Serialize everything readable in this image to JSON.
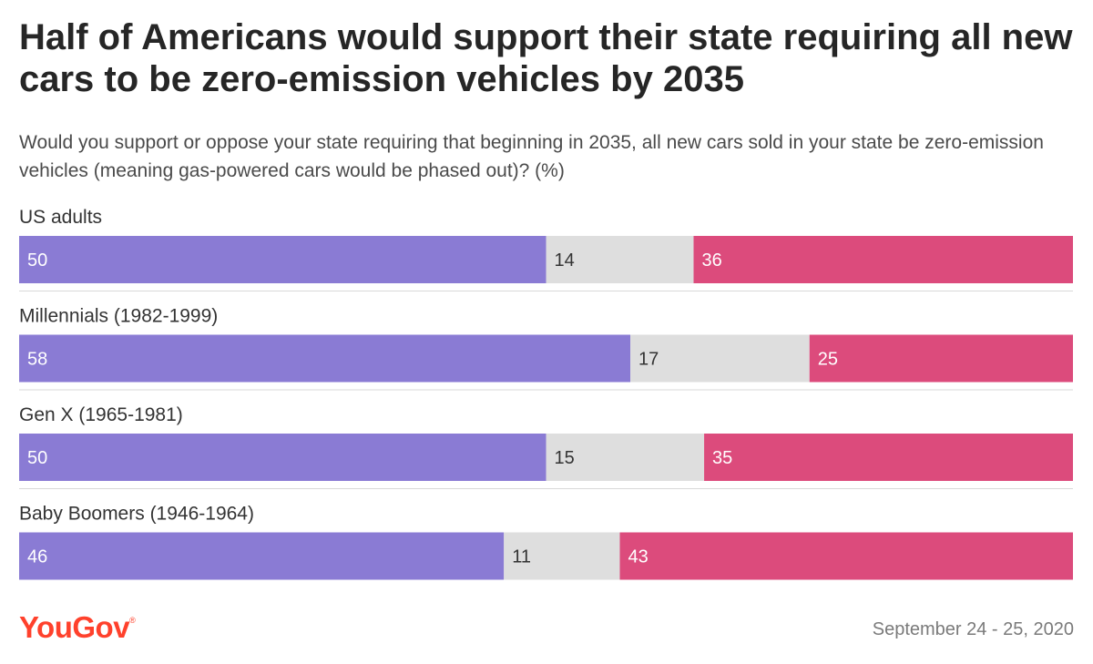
{
  "header": {
    "title": "Half of Americans would support their state requiring all new cars to be zero-emission vehicles by 2035",
    "subtitle": "Would you support or oppose your state requiring that beginning in 2035, all new cars sold in your state be zero-emission vehicles (meaning gas-powered cars would be phased out)? (%)"
  },
  "footer": {
    "brand": "YouGov",
    "brand_mark": "®",
    "date": "September 24 - 25, 2020"
  },
  "chart_data": {
    "type": "bar",
    "stacked": true,
    "orientation": "horizontal",
    "title": "Half of Americans would support their state requiring all new cars to be zero-emission vehicles by 2035",
    "categories": [
      "US adults",
      "Millennials (1982-1999)",
      "Gen X (1965-1981)",
      "Baby Boomers (1946-1964)"
    ],
    "series": [
      {
        "values": [
          50,
          58,
          50,
          46
        ],
        "color": "#8a7bd4",
        "label_color": "#ffffff"
      },
      {
        "values": [
          14,
          17,
          15,
          11
        ],
        "color": "#dedede",
        "label_color": "#333333"
      },
      {
        "values": [
          36,
          25,
          35,
          43
        ],
        "color": "#dc4b7c",
        "label_color": "#ffffff"
      }
    ],
    "xlim": [
      0,
      100
    ],
    "grid": false,
    "legend": "none"
  }
}
